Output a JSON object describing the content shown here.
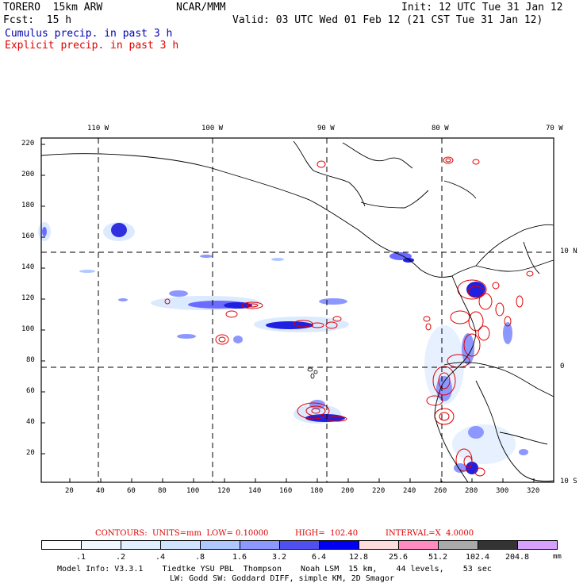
{
  "header": {
    "model": "TORERO  15km ARW",
    "fcst": "Fcst:  15 h",
    "org": "NCAR/MMM",
    "init": "Init: 12 UTC Tue 31 Jan 12",
    "valid": "Valid: 03 UTC Wed 01 Feb 12 (21 CST Tue 31 Jan 12)",
    "legend_cumulus": "Cumulus precip. in past 3 h",
    "legend_explicit": "Explicit precip. in past 3 h"
  },
  "map": {
    "top_longitudes": [
      "110 W",
      "100 W",
      "90 W",
      "80 W",
      "70 W"
    ],
    "right_latitudes": [
      "10 N",
      "0",
      "10 S"
    ],
    "y_ticks": [
      "220",
      "200",
      "180",
      "160",
      "140",
      "120",
      "100",
      "80",
      "60",
      "40",
      "20"
    ],
    "x_ticks": [
      "20",
      "40",
      "60",
      "80",
      "100",
      "120",
      "140",
      "160",
      "180",
      "200",
      "220",
      "240",
      "260",
      "280",
      "300",
      "320"
    ],
    "colors": {
      "cumulus": "#1c1ce8",
      "cumulus_light": "#cfe3ff",
      "explicit": "#e00000",
      "coast": "#000000",
      "grid": "#000000"
    }
  },
  "contour_info": {
    "units": "CONTOURS:  UNITS=mm  LOW= 0.10000",
    "high": "HIGH=  102.40",
    "interval": "INTERVAL=X  4.0000"
  },
  "colorbar": {
    "labels": [
      ".1",
      ".2",
      ".4",
      ".8",
      "1.6",
      "3.2",
      "6.4",
      "12.8",
      "25.6",
      "51.2",
      "102.4",
      "204.8"
    ],
    "unit": "mm",
    "colors": [
      "#ffffff",
      "#f0f8ff",
      "#e1f0ff",
      "#cfe3ff",
      "#b0c8ff",
      "#8c98ff",
      "#5050f0",
      "#0000f0",
      "#ffdcdc",
      "#ff8cc0",
      "#aaaaaa",
      "#333333",
      "#d7a0ff"
    ]
  },
  "footer": {
    "line1": "Model Info: V3.3.1    Tiedtke YSU PBL  Thompson    Noah LSM  15 km,    44 levels,    53 sec",
    "line2": "LW: Godd SW: Goddard DIFF, simple KM, 2D Smagor"
  }
}
